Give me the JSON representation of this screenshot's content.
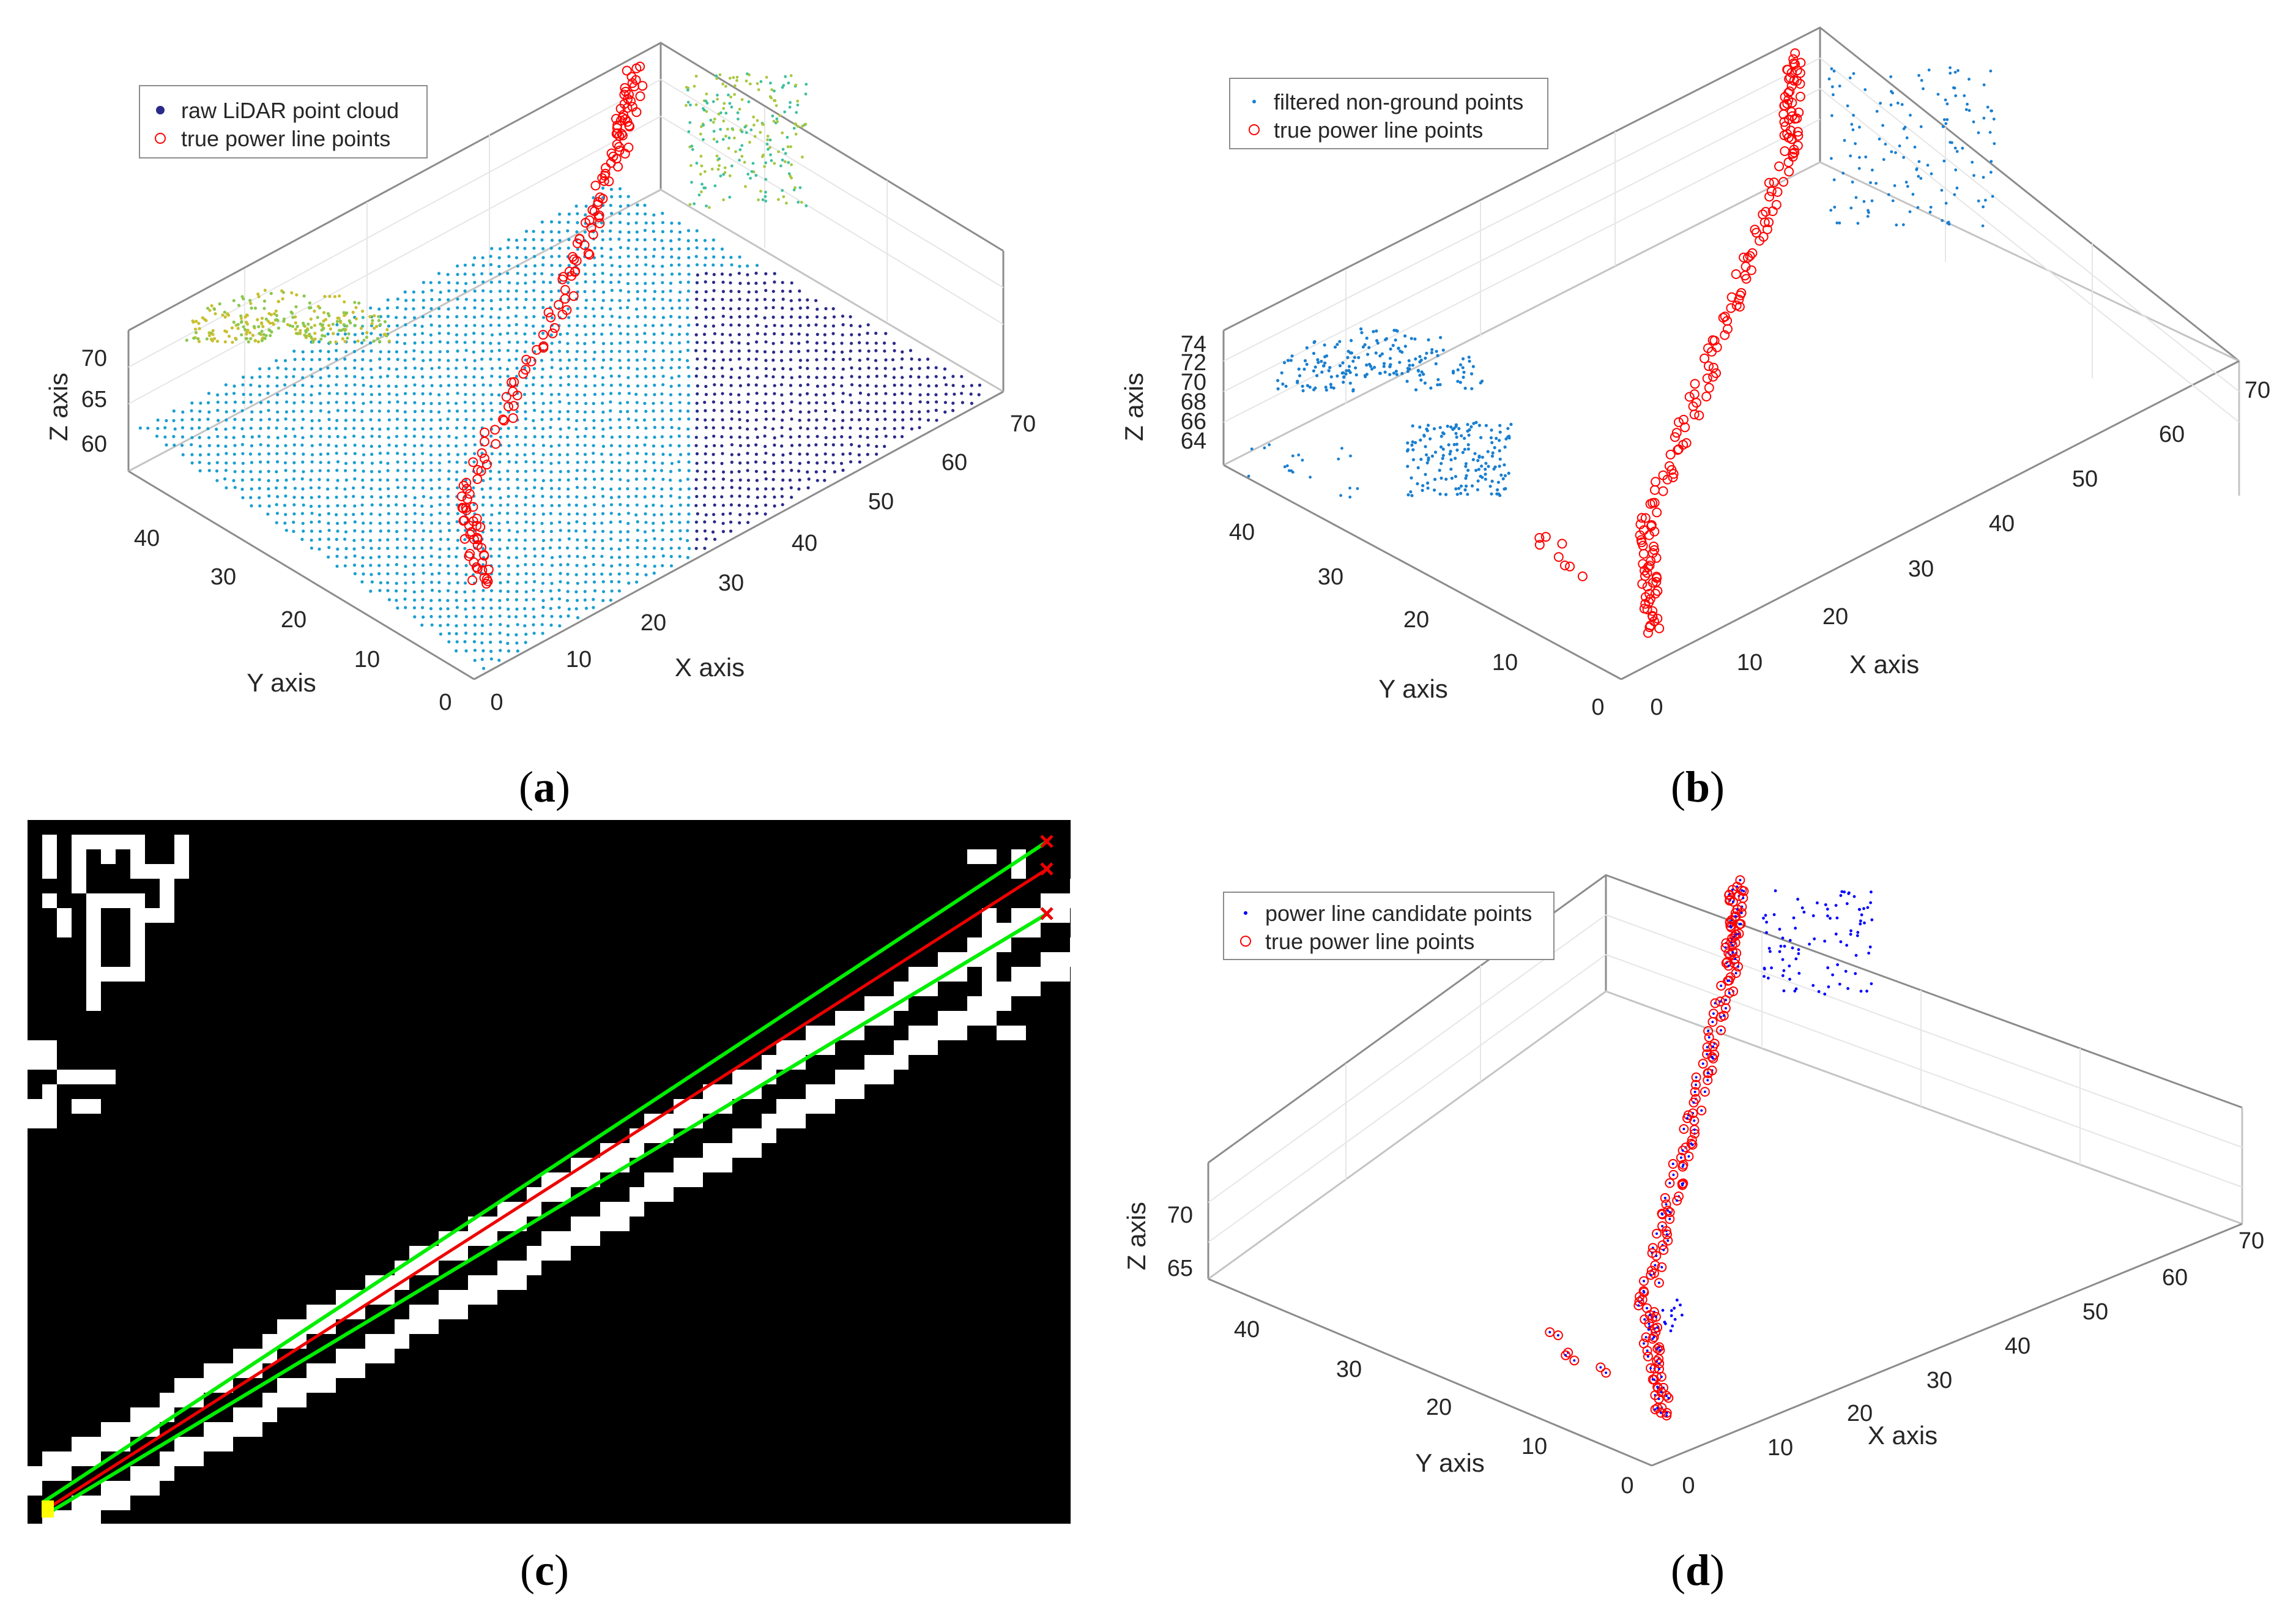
{
  "chart_data": [
    {
      "id": "a",
      "type": "scatter3d",
      "caption": "a",
      "xlabel": "X axis",
      "ylabel": "Y axis",
      "zlabel": "Z axis",
      "xticks": [
        "0",
        "10",
        "20",
        "30",
        "40",
        "50",
        "60",
        "70"
      ],
      "yticks": [
        "0",
        "10",
        "20",
        "30",
        "40"
      ],
      "zticks": [
        "60",
        "65",
        "70"
      ],
      "xlim": [
        0,
        70
      ],
      "ylim": [
        0,
        45
      ],
      "zlim": [
        58,
        74
      ],
      "legend": [
        "raw LiDAR point cloud",
        "true power line points"
      ],
      "legend_location": "top-left"
    },
    {
      "id": "b",
      "type": "scatter3d",
      "caption": "b",
      "xlabel": "X axis",
      "ylabel": "Y axis",
      "zlabel": "Z axis",
      "xticks": [
        "0",
        "10",
        "20",
        "30",
        "40",
        "50",
        "60",
        "70"
      ],
      "yticks": [
        "0",
        "10",
        "20",
        "30",
        "40"
      ],
      "zticks": [
        "64",
        "66",
        "68",
        "70",
        "72",
        "74"
      ],
      "xlim": [
        0,
        70
      ],
      "ylim": [
        0,
        45
      ],
      "zlim": [
        63,
        75
      ],
      "legend": [
        "filtered non-ground points",
        "true power line points"
      ],
      "legend_location": "top-left"
    },
    {
      "id": "c",
      "type": "image",
      "caption": "c",
      "description_lines": [
        "upper bound",
        "fitted line",
        "lower bound"
      ]
    },
    {
      "id": "d",
      "type": "scatter3d",
      "caption": "d",
      "xlabel": "X axis",
      "ylabel": "Y axis",
      "zlabel": "Z axis",
      "xticks": [
        "0",
        "10",
        "20",
        "30",
        "40",
        "50",
        "60",
        "70"
      ],
      "yticks": [
        "0",
        "10",
        "20",
        "30",
        "40"
      ],
      "zticks": [
        "65",
        "70"
      ],
      "xlim": [
        0,
        70
      ],
      "ylim": [
        0,
        45
      ],
      "zlim": [
        63,
        75
      ],
      "legend": [
        "power line candidate points",
        "true power line points"
      ],
      "legend_location": "top-left"
    }
  ],
  "colors": {
    "axis": "#8c8c8c",
    "grid": "#e3e3e3",
    "power_line": "#ff0000",
    "raw_low": "#2a2a8a",
    "raw_mid": "#1a9fd0",
    "raw_high": "#c8c030",
    "filtered": "#1a7fd0",
    "candidate": "#0000ff",
    "line_green": "#00ee00",
    "line_red": "#ee0000",
    "marker_yellow": "#ffff00"
  }
}
